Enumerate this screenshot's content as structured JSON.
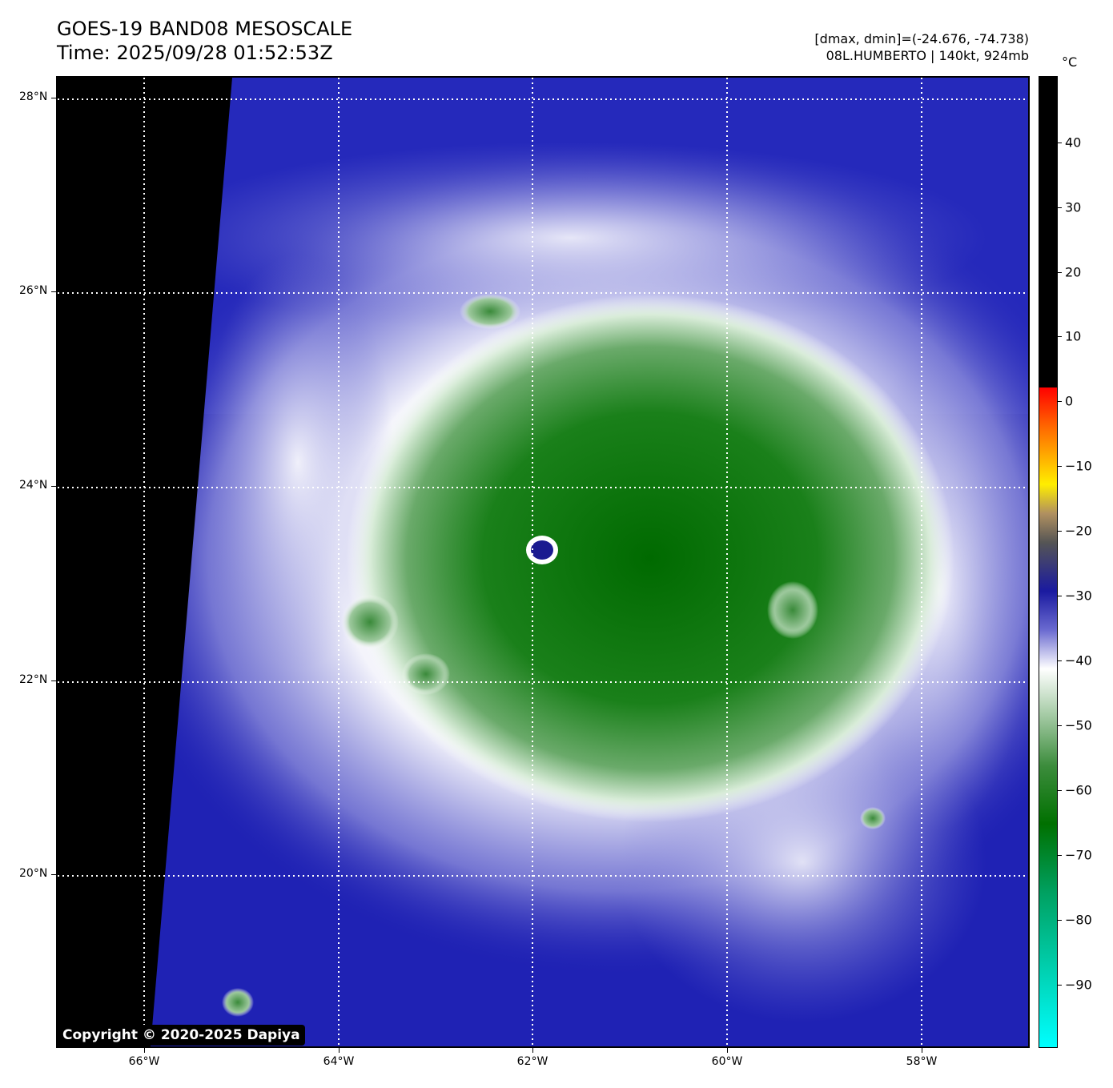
{
  "title_line1": "GOES-19 BAND08 MESOSCALE",
  "title_line2": "Time: 2025/09/28 01:52:53Z",
  "info_line1": "[dmax, dmin]=(-24.676, -74.738)",
  "info_line2": "08L.HUMBERTO | 140kt, 924mb",
  "copyright": "Copyright © 2020-2025 Dapiya",
  "lat_labels": [
    "28°N",
    "26°N",
    "24°N",
    "22°N",
    "20°N"
  ],
  "lon_labels": [
    "66°W",
    "64°W",
    "62°W",
    "60°W",
    "58°W"
  ],
  "colorbar": {
    "unit": "°C",
    "labels": [
      "40",
      "30",
      "20",
      "10",
      "0",
      "−10",
      "−20",
      "−30",
      "−40",
      "−50",
      "−60",
      "−70",
      "−80",
      "−90"
    ]
  },
  "colors": {
    "background_ocean": "#1f22b4",
    "cold_cloud": "#007000",
    "cirrus": "#ffffff",
    "eye": "#1a1a90"
  }
}
